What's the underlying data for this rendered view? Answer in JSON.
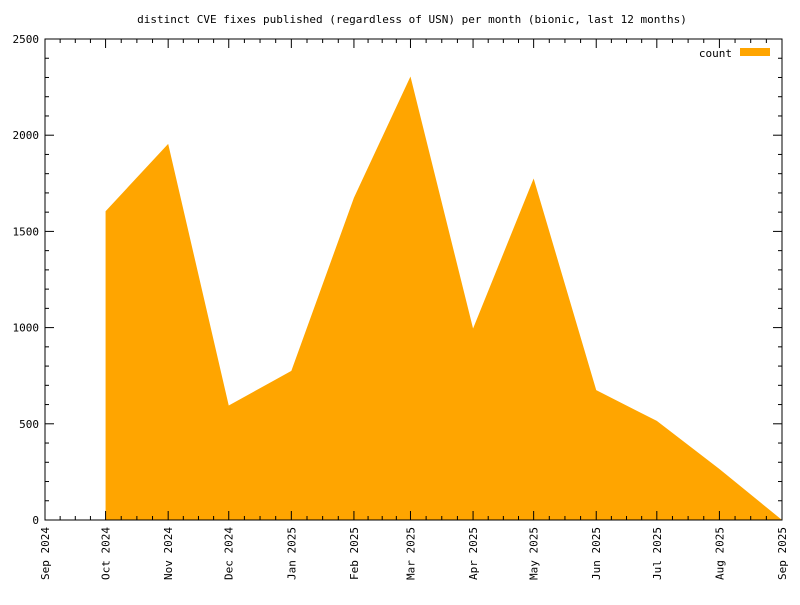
{
  "chart_data": {
    "type": "area",
    "title": "distinct CVE fixes published (regardless of USN) per month (bionic, last 12 months)",
    "xlabel": "",
    "ylabel": "",
    "x": [
      "2024-09-01",
      "2024-10-01",
      "2024-11-01",
      "2024-12-01",
      "2025-01-01",
      "2025-02-01",
      "2025-03-01",
      "2025-04-01",
      "2025-05-01",
      "2025-06-01",
      "2025-07-01",
      "2025-08-01",
      "2025-09-01"
    ],
    "x_tick_labels": [
      "Sep 2024",
      "Oct 2024",
      "Nov 2024",
      "Dec 2024",
      "Jan 2025",
      "Feb 2025",
      "Mar 2025",
      "Apr 2025",
      "May 2025",
      "Jun 2025",
      "Jul 2025",
      "Aug 2025",
      "Sep 2025"
    ],
    "series": [
      {
        "name": "count",
        "color": "#ffa500",
        "x": [
          "2024-10-01",
          "2024-11-01",
          "2024-12-01",
          "2025-01-01",
          "2025-02-01",
          "2025-03-01",
          "2025-04-01",
          "2025-05-01",
          "2025-06-01",
          "2025-07-01",
          "2025-08-01",
          "2025-09-01"
        ],
        "values": [
          1605,
          1955,
          595,
          775,
          1675,
          2305,
          995,
          1775,
          675,
          515,
          265,
          0
        ]
      }
    ],
    "ylim": [
      0,
      2500
    ],
    "y_ticks": [
      0,
      500,
      1000,
      1500,
      2000,
      2500
    ],
    "legend_position": "top-right",
    "grid": false
  }
}
